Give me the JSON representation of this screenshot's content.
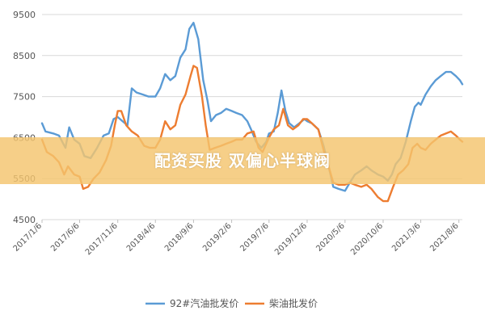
{
  "chart_data": {
    "type": "line",
    "title": "",
    "xlabel": "",
    "ylabel": "",
    "ylim": [
      4500,
      9500
    ],
    "yticks": [
      "4500",
      "5500",
      "6500",
      "7500",
      "8500",
      "9500"
    ],
    "grid": true,
    "legend_position": "bottom",
    "xlim": [
      "2017-01-06",
      "2021-08-20"
    ],
    "xtick_labels": [
      "2017/1/6",
      "2017/6/6",
      "2017/11/6",
      "2018/4/6",
      "2018/9/6",
      "2019/2/6",
      "2019/7/6",
      "2019/12/6",
      "2020/5/6",
      "2020/10/6",
      "2021/3/6",
      "2021/8/6"
    ],
    "xtick_dates": [
      "2017-01-06",
      "2017-06-06",
      "2017-11-06",
      "2018-04-06",
      "2018-09-06",
      "2019-02-06",
      "2019-07-06",
      "2019-12-06",
      "2020-05-06",
      "2020-10-06",
      "2021-03-06",
      "2021-08-06"
    ],
    "series": [
      {
        "name": "92#汽油批发价",
        "color": "#5b9bd5",
        "points": [
          [
            "2017-01-06",
            6850
          ],
          [
            "2017-01-20",
            6650
          ],
          [
            "2017-02-20",
            6600
          ],
          [
            "2017-03-15",
            6550
          ],
          [
            "2017-04-10",
            6250
          ],
          [
            "2017-04-25",
            6750
          ],
          [
            "2017-05-15",
            6450
          ],
          [
            "2017-06-06",
            6350
          ],
          [
            "2017-06-25",
            6050
          ],
          [
            "2017-07-20",
            6000
          ],
          [
            "2017-08-15",
            6250
          ],
          [
            "2017-09-10",
            6550
          ],
          [
            "2017-10-01",
            6600
          ],
          [
            "2017-10-20",
            6950
          ],
          [
            "2017-11-06",
            7000
          ],
          [
            "2017-11-25",
            6900
          ],
          [
            "2017-12-15",
            6800
          ],
          [
            "2018-01-01",
            7700
          ],
          [
            "2018-01-20",
            7600
          ],
          [
            "2018-02-15",
            7550
          ],
          [
            "2018-03-10",
            7500
          ],
          [
            "2018-04-06",
            7500
          ],
          [
            "2018-04-25",
            7700
          ],
          [
            "2018-05-15",
            8050
          ],
          [
            "2018-06-05",
            7900
          ],
          [
            "2018-06-25",
            8000
          ],
          [
            "2018-07-15",
            8450
          ],
          [
            "2018-08-05",
            8650
          ],
          [
            "2018-08-20",
            9150
          ],
          [
            "2018-09-06",
            9300
          ],
          [
            "2018-09-25",
            8900
          ],
          [
            "2018-10-15",
            7900
          ],
          [
            "2018-11-01",
            7400
          ],
          [
            "2018-11-15",
            6900
          ],
          [
            "2018-12-05",
            7050
          ],
          [
            "2018-12-25",
            7100
          ],
          [
            "2019-01-15",
            7200
          ],
          [
            "2019-02-06",
            7150
          ],
          [
            "2019-02-25",
            7100
          ],
          [
            "2019-03-20",
            7050
          ],
          [
            "2019-04-10",
            6900
          ],
          [
            "2019-04-25",
            6700
          ],
          [
            "2019-05-15",
            6400
          ],
          [
            "2019-06-05",
            6250
          ],
          [
            "2019-06-25",
            6400
          ],
          [
            "2019-07-06",
            6600
          ],
          [
            "2019-07-25",
            6650
          ],
          [
            "2019-08-10",
            7100
          ],
          [
            "2019-08-25",
            7650
          ],
          [
            "2019-09-10",
            7150
          ],
          [
            "2019-09-25",
            6850
          ],
          [
            "2019-10-15",
            6750
          ],
          [
            "2019-11-05",
            6850
          ],
          [
            "2019-11-25",
            6950
          ],
          [
            "2019-12-06",
            6900
          ],
          [
            "2019-12-25",
            6850
          ],
          [
            "2020-01-20",
            6700
          ],
          [
            "2020-02-10",
            6300
          ],
          [
            "2020-03-01",
            5800
          ],
          [
            "2020-03-20",
            5300
          ],
          [
            "2020-04-10",
            5250
          ],
          [
            "2020-05-06",
            5200
          ],
          [
            "2020-05-25",
            5400
          ],
          [
            "2020-06-15",
            5600
          ],
          [
            "2020-07-10",
            5700
          ],
          [
            "2020-08-01",
            5800
          ],
          [
            "2020-08-20",
            5700
          ],
          [
            "2020-09-15",
            5600
          ],
          [
            "2020-10-06",
            5550
          ],
          [
            "2020-10-25",
            5450
          ],
          [
            "2020-11-10",
            5600
          ],
          [
            "2020-11-25",
            5850
          ],
          [
            "2020-12-15",
            6000
          ],
          [
            "2021-01-05",
            6400
          ],
          [
            "2021-01-25",
            6900
          ],
          [
            "2021-02-10",
            7250
          ],
          [
            "2021-02-25",
            7350
          ],
          [
            "2021-03-06",
            7300
          ],
          [
            "2021-03-25",
            7550
          ],
          [
            "2021-04-15",
            7750
          ],
          [
            "2021-05-05",
            7900
          ],
          [
            "2021-05-25",
            8000
          ],
          [
            "2021-06-15",
            8100
          ],
          [
            "2021-07-05",
            8100
          ],
          [
            "2021-07-25",
            8000
          ],
          [
            "2021-08-10",
            7900
          ],
          [
            "2021-08-20",
            7800
          ]
        ]
      },
      {
        "name": "柴油批发价",
        "color": "#ed7d31",
        "points": [
          [
            "2017-01-06",
            6450
          ],
          [
            "2017-01-25",
            6150
          ],
          [
            "2017-02-20",
            6050
          ],
          [
            "2017-03-15",
            5900
          ],
          [
            "2017-04-05",
            5600
          ],
          [
            "2017-04-20",
            5800
          ],
          [
            "2017-05-15",
            5600
          ],
          [
            "2017-06-06",
            5550
          ],
          [
            "2017-06-20",
            5250
          ],
          [
            "2017-07-10",
            5300
          ],
          [
            "2017-08-01",
            5500
          ],
          [
            "2017-08-25",
            5650
          ],
          [
            "2017-09-20",
            5950
          ],
          [
            "2017-10-10",
            6300
          ],
          [
            "2017-10-25",
            6800
          ],
          [
            "2017-11-06",
            7150
          ],
          [
            "2017-11-20",
            7150
          ],
          [
            "2017-12-10",
            6800
          ],
          [
            "2018-01-01",
            6650
          ],
          [
            "2018-01-25",
            6550
          ],
          [
            "2018-02-20",
            6300
          ],
          [
            "2018-03-15",
            6250
          ],
          [
            "2018-04-06",
            6250
          ],
          [
            "2018-04-25",
            6450
          ],
          [
            "2018-05-15",
            6900
          ],
          [
            "2018-06-05",
            6700
          ],
          [
            "2018-06-25",
            6800
          ],
          [
            "2018-07-15",
            7300
          ],
          [
            "2018-08-05",
            7550
          ],
          [
            "2018-08-25",
            8000
          ],
          [
            "2018-09-06",
            8250
          ],
          [
            "2018-09-20",
            8200
          ],
          [
            "2018-10-10",
            7500
          ],
          [
            "2018-10-25",
            6800
          ],
          [
            "2018-11-10",
            6200
          ],
          [
            "2018-12-01",
            6250
          ],
          [
            "2018-12-25",
            6300
          ],
          [
            "2019-01-15",
            6350
          ],
          [
            "2019-02-06",
            6400
          ],
          [
            "2019-02-25",
            6450
          ],
          [
            "2019-03-20",
            6450
          ],
          [
            "2019-04-10",
            6600
          ],
          [
            "2019-05-05",
            6650
          ],
          [
            "2019-05-25",
            6250
          ],
          [
            "2019-06-10",
            6150
          ],
          [
            "2019-06-25",
            6350
          ],
          [
            "2019-07-06",
            6500
          ],
          [
            "2019-07-25",
            6700
          ],
          [
            "2019-08-15",
            6800
          ],
          [
            "2019-09-01",
            7200
          ],
          [
            "2019-09-20",
            6800
          ],
          [
            "2019-10-10",
            6700
          ],
          [
            "2019-11-01",
            6800
          ],
          [
            "2019-11-20",
            6950
          ],
          [
            "2019-12-06",
            6950
          ],
          [
            "2019-12-25",
            6850
          ],
          [
            "2020-01-20",
            6700
          ],
          [
            "2020-02-10",
            6200
          ],
          [
            "2020-03-01",
            5800
          ],
          [
            "2020-03-20",
            5400
          ],
          [
            "2020-04-10",
            5350
          ],
          [
            "2020-05-06",
            5350
          ],
          [
            "2020-05-25",
            5400
          ],
          [
            "2020-06-15",
            5350
          ],
          [
            "2020-07-10",
            5300
          ],
          [
            "2020-08-01",
            5350
          ],
          [
            "2020-08-20",
            5250
          ],
          [
            "2020-09-15",
            5050
          ],
          [
            "2020-10-06",
            4950
          ],
          [
            "2020-10-25",
            4950
          ],
          [
            "2020-11-15",
            5300
          ],
          [
            "2020-12-05",
            5600
          ],
          [
            "2020-12-25",
            5700
          ],
          [
            "2021-01-15",
            5850
          ],
          [
            "2021-02-01",
            6250
          ],
          [
            "2021-02-20",
            6350
          ],
          [
            "2021-03-06",
            6250
          ],
          [
            "2021-03-25",
            6200
          ],
          [
            "2021-04-15",
            6350
          ],
          [
            "2021-05-05",
            6450
          ],
          [
            "2021-05-25",
            6550
          ],
          [
            "2021-06-15",
            6600
          ],
          [
            "2021-07-05",
            6650
          ],
          [
            "2021-07-25",
            6550
          ],
          [
            "2021-08-10",
            6450
          ],
          [
            "2021-08-20",
            6400
          ]
        ]
      }
    ]
  },
  "watermark": {
    "text": "配资买股 双偏心半球阀"
  }
}
